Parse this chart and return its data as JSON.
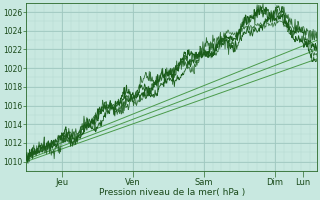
{
  "xlabel": "Pression niveau de la mer( hPa )",
  "ylim": [
    1009,
    1027
  ],
  "yticks": [
    1010,
    1012,
    1014,
    1016,
    1018,
    1020,
    1022,
    1024,
    1026
  ],
  "xtick_labels": [
    "Jeu",
    "Ven",
    "Sam",
    "Dim",
    "Lun"
  ],
  "xtick_positions": [
    1,
    3,
    5,
    7,
    7.8
  ],
  "xlim": [
    0,
    8.2
  ],
  "background_color": "#c8e8e0",
  "grid_major_color": "#a0c8c0",
  "grid_minor_color": "#b4d8d0",
  "line_color_dark": "#1a5c1a",
  "line_color_light": "#4a9a4a"
}
